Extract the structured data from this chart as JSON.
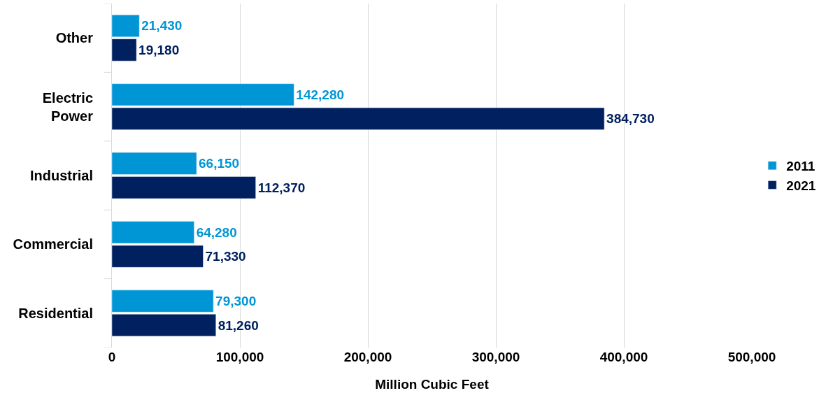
{
  "chart_data": {
    "type": "bar",
    "orientation": "horizontal",
    "xlabel": "Million Cubic Feet",
    "categories": [
      "Other",
      "Electric Power",
      "Industrial",
      "Commercial",
      "Residential"
    ],
    "series": [
      {
        "name": "2011",
        "color": "#0096d6",
        "values": [
          21430,
          142280,
          66150,
          64280,
          79300
        ],
        "value_labels": [
          "21,430",
          "142,280",
          "66,150",
          "64,280",
          "79,300"
        ]
      },
      {
        "name": "2021",
        "color": "#002060",
        "values": [
          19180,
          384730,
          112370,
          71330,
          81260
        ],
        "value_labels": [
          "19,180",
          "384,730",
          "112,370",
          "71,330",
          "81,260"
        ]
      }
    ],
    "xlim": [
      0,
      500000
    ],
    "xticks": [
      {
        "value": 0,
        "label": "0"
      },
      {
        "value": 100000,
        "label": "100,000"
      },
      {
        "value": 200000,
        "label": "200,000"
      },
      {
        "value": 300000,
        "label": "300,000"
      },
      {
        "value": 400000,
        "label": "400,000"
      },
      {
        "value": 500000,
        "label": "500,000"
      }
    ],
    "grid": "x",
    "legend": "right"
  }
}
